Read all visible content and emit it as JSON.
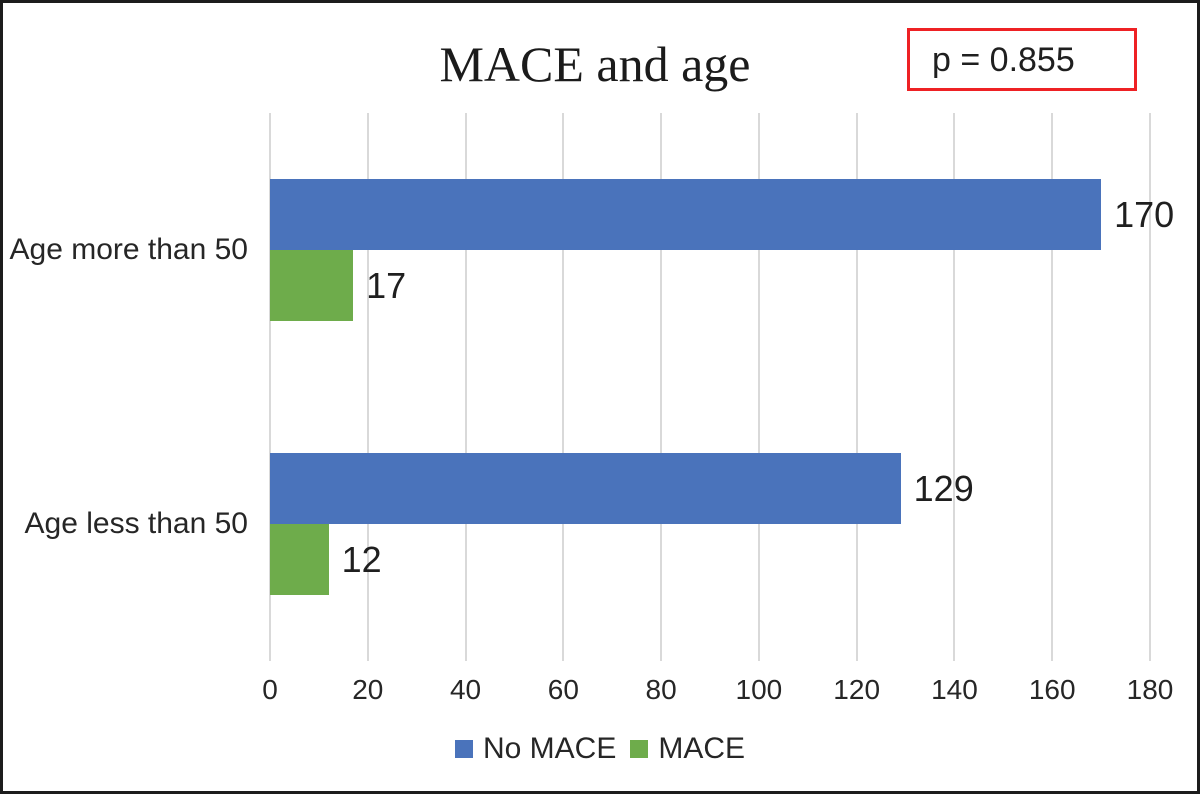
{
  "title": "MACE and age",
  "annotation": {
    "p_label": "p = 0.855"
  },
  "chart_data": {
    "type": "bar",
    "orientation": "horizontal",
    "title": "MACE and age",
    "annotation": "p = 0.855",
    "categories": [
      "Age more than 50",
      "Age less than 50"
    ],
    "series": [
      {
        "name": "No MACE",
        "color": "#4a73bb",
        "values": [
          170,
          129
        ]
      },
      {
        "name": "MACE",
        "color": "#6eac4b",
        "values": [
          17,
          12
        ]
      }
    ],
    "x_ticks": [
      0,
      20,
      40,
      60,
      80,
      100,
      120,
      140,
      160,
      180
    ],
    "xlim": [
      0,
      180
    ],
    "xlabel": "",
    "ylabel": "",
    "grid": "vertical",
    "data_labels": "outside-end",
    "legend_position": "bottom"
  },
  "colors": {
    "grid": "#d9d9d9",
    "annotation_border": "#ee2124",
    "frame_border": "#1c1c1c",
    "text": "#262626"
  }
}
